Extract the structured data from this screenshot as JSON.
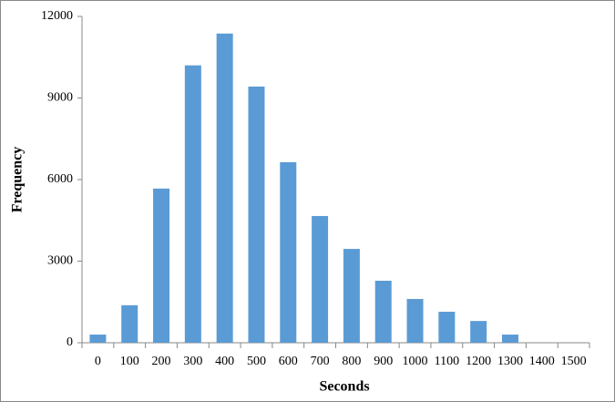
{
  "chart_data": {
    "type": "bar",
    "xlabel": "Seconds",
    "ylabel": "Frequency",
    "categories": [
      "0",
      "100",
      "200",
      "300",
      "400",
      "500",
      "600",
      "700",
      "800",
      "900",
      "1000",
      "1100",
      "1200",
      "1300",
      "1400",
      "1500"
    ],
    "values": [
      300,
      1380,
      5670,
      10200,
      11370,
      9420,
      6640,
      4660,
      3450,
      2280,
      1610,
      1140,
      800,
      300,
      0,
      0
    ],
    "color": "#5b9bd5",
    "ylim": [
      0,
      12000
    ],
    "yticks": [
      0,
      3000,
      6000,
      9000,
      12000
    ],
    "grid": false
  }
}
